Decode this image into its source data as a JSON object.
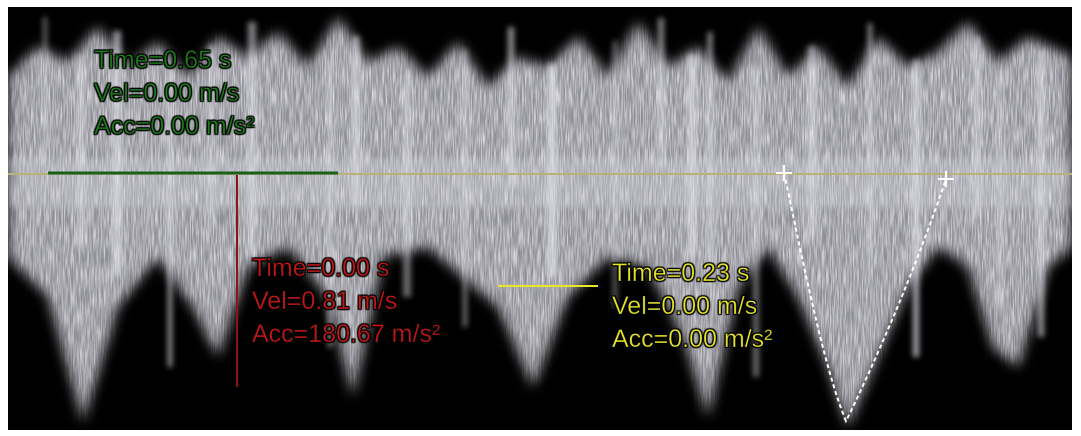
{
  "colors": {
    "green": "#1d7a1d",
    "red": "#c41818",
    "yellow": "#e8e62a",
    "baseline": "#b8b27a",
    "background": "#000000"
  },
  "measurements": {
    "green": {
      "time": "Time=0.65 s",
      "vel": "Vel=0.00 m/s",
      "acc": "Acc=0.00 m/s²"
    },
    "red": {
      "time": "Time=0.00 s",
      "vel": "Vel=0.81 m/s",
      "acc": "Acc=180.67 m/s²"
    },
    "yellow": {
      "time": "Time=0.23 s",
      "vel": "Vel=0.00 m/s",
      "acc": "Acc=0.00 m/s²"
    }
  }
}
